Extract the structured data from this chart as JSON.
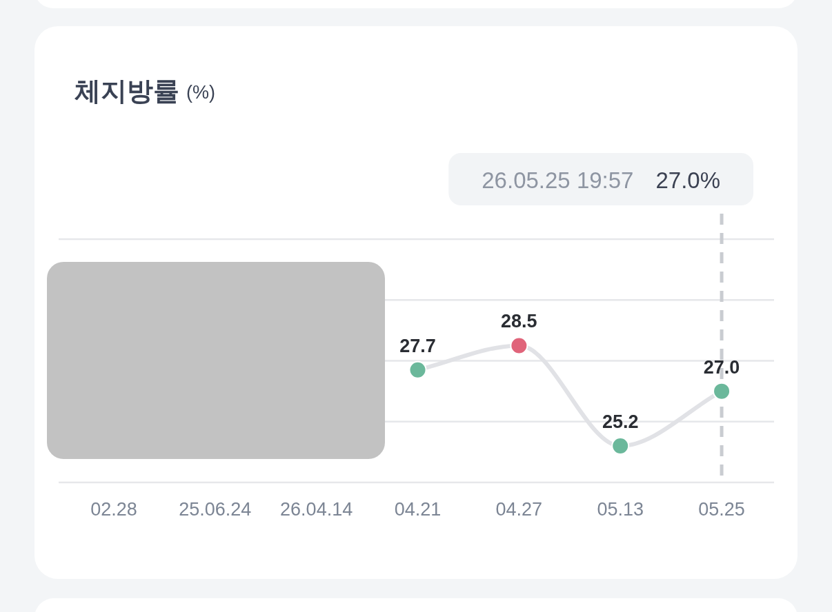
{
  "chart_data": {
    "type": "line",
    "title": "체지방률",
    "subtitle": "(%)",
    "categories": [
      "02.28",
      "25.06.24",
      "26.04.14",
      "04.21",
      "04.27",
      "05.13",
      "05.25"
    ],
    "series": [
      {
        "color": "#e1e2e6",
        "values": [
          null,
          null,
          null,
          27.7,
          28.5,
          25.2,
          27.0
        ],
        "value_labels": [
          null,
          null,
          null,
          "27.7",
          "28.5",
          "25.2",
          "27.0"
        ],
        "colors": [
          null,
          null,
          null,
          "#6bb89b",
          "#e0647a",
          "#6bb89b",
          "#6bb89b"
        ]
      }
    ],
    "ylim": [
      24,
      32
    ],
    "yticks": [
      {
        "value": 24,
        "label": null
      },
      {
        "value": 26,
        "label": null
      },
      {
        "value": 28,
        "label": null
      },
      {
        "value": 30,
        "label": null
      },
      {
        "value": 32,
        "label": null
      }
    ],
    "grid": "y",
    "marker": "circle",
    "ref_lines": [
      {
        "axis": "x",
        "value": "05.25",
        "color": "#c9ccd1",
        "line_style": "dashed"
      }
    ],
    "annotations": [
      "26.05.25 19:57",
      "27.0%"
    ]
  }
}
